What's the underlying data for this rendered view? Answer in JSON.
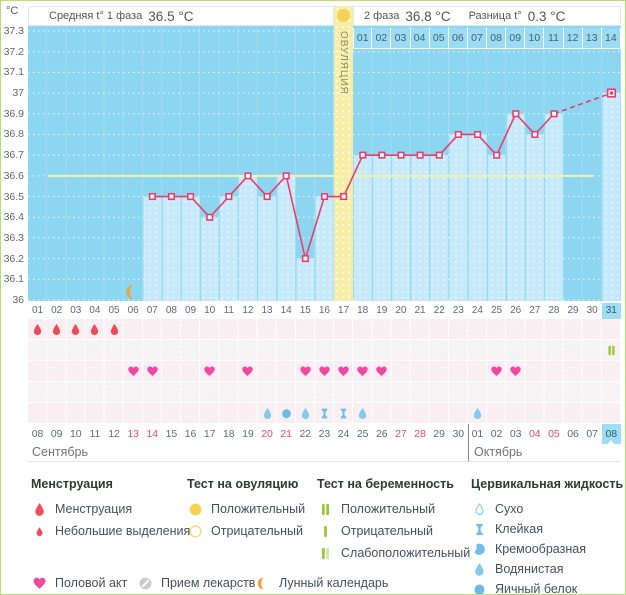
{
  "header": {
    "unit": "°C",
    "phase1_label": "Средняя t° 1 фаза",
    "phase1_value": "36.5 °C",
    "phase2_label": "2 фаза",
    "phase2_value": "36.8 °C",
    "diff_label": "Разница t°",
    "diff_value": "0.3 °C",
    "ovulation_label": "ОВУЛЯЦИЯ"
  },
  "chart_data": {
    "type": "line",
    "ylabel": "°C",
    "ylim": [
      36,
      37.3
    ],
    "yticks": [
      "37.3",
      "37.2",
      "37.1",
      "37",
      "36.9",
      "36.8",
      "36.7",
      "36.6",
      "36.5",
      "36.4",
      "36.3",
      "36.2",
      "36.1",
      "36"
    ],
    "cycle_days": [
      "01",
      "02",
      "03",
      "04",
      "05",
      "06",
      "07",
      "08",
      "09",
      "10",
      "11",
      "12",
      "13",
      "14",
      "15",
      "16",
      "17",
      "18",
      "19",
      "20",
      "21",
      "22",
      "23",
      "24",
      "25",
      "26",
      "27",
      "28",
      "29",
      "30",
      "31"
    ],
    "luteal_days": [
      "01",
      "02",
      "03",
      "04",
      "05",
      "06",
      "07",
      "08",
      "09",
      "10",
      "11",
      "12",
      "13",
      "14"
    ],
    "temperatures": [
      null,
      null,
      null,
      null,
      null,
      null,
      36.5,
      36.5,
      36.5,
      36.4,
      36.5,
      36.6,
      36.5,
      36.6,
      36.2,
      36.5,
      36.5,
      36.7,
      36.7,
      36.7,
      36.7,
      36.7,
      36.8,
      36.8,
      36.7,
      36.9,
      36.8,
      36.9,
      null,
      null,
      37.0
    ],
    "coverline": 36.6,
    "ovulation_day": 17,
    "current_day": 31,
    "moon_day": 6
  },
  "marker_rows": [
    {
      "name": "menstruation-row",
      "markers": [
        {
          "day": 1,
          "icon": "menstruation"
        },
        {
          "day": 2,
          "icon": "menstruation"
        },
        {
          "day": 3,
          "icon": "menstruation"
        },
        {
          "day": 4,
          "icon": "menstruation"
        },
        {
          "day": 5,
          "icon": "menstruation"
        }
      ]
    },
    {
      "name": "test-row",
      "markers": [
        {
          "day": 31,
          "icon": "pregnancy-positive"
        }
      ]
    },
    {
      "name": "intercourse-row",
      "markers": [
        {
          "day": 6,
          "icon": "intercourse"
        },
        {
          "day": 7,
          "icon": "intercourse"
        },
        {
          "day": 10,
          "icon": "intercourse"
        },
        {
          "day": 12,
          "icon": "intercourse"
        },
        {
          "day": 15,
          "icon": "intercourse"
        },
        {
          "day": 16,
          "icon": "intercourse"
        },
        {
          "day": 17,
          "icon": "intercourse"
        },
        {
          "day": 18,
          "icon": "intercourse"
        },
        {
          "day": 19,
          "icon": "intercourse"
        },
        {
          "day": 25,
          "icon": "intercourse"
        },
        {
          "day": 26,
          "icon": "intercourse"
        }
      ]
    },
    {
      "name": "medication-row",
      "markers": []
    },
    {
      "name": "cervical-fluid-row",
      "markers": [
        {
          "day": 13,
          "icon": "watery"
        },
        {
          "day": 14,
          "icon": "eggwhite"
        },
        {
          "day": 15,
          "icon": "watery"
        },
        {
          "day": 16,
          "icon": "sticky"
        },
        {
          "day": 17,
          "icon": "sticky"
        },
        {
          "day": 18,
          "icon": "watery"
        },
        {
          "day": 24,
          "icon": "watery"
        }
      ]
    }
  ],
  "calendar": {
    "dates": [
      "08",
      "09",
      "10",
      "11",
      "12",
      "13",
      "14",
      "15",
      "16",
      "17",
      "18",
      "19",
      "20",
      "21",
      "22",
      "23",
      "24",
      "25",
      "26",
      "27",
      "28",
      "29",
      "30",
      "01",
      "02",
      "03",
      "04",
      "05",
      "06",
      "07",
      "08"
    ],
    "weekend_indices": [
      5,
      6,
      12,
      13,
      19,
      20,
      26,
      27
    ],
    "current_index": 30,
    "months": [
      {
        "label": "Сентябрь",
        "start_index": 0
      },
      {
        "label": "Октябрь",
        "start_index": 23
      }
    ]
  },
  "legend": {
    "groups": [
      {
        "title": "Менструация",
        "items": [
          {
            "icon": "menstruation",
            "label": "Менструация"
          },
          {
            "icon": "spotting",
            "label": "Небольшие выделения"
          }
        ]
      },
      {
        "title": "Тест на овуляцию",
        "items": [
          {
            "icon": "ovulation-positive",
            "label": "Положительный"
          },
          {
            "icon": "ovulation-negative",
            "label": "Отрицательный"
          }
        ]
      },
      {
        "title": "Тест на беременность",
        "items": [
          {
            "icon": "pregnancy-positive",
            "label": "Положительный"
          },
          {
            "icon": "pregnancy-negative",
            "label": "Отрицательный"
          },
          {
            "icon": "pregnancy-weak",
            "label": "Слабоположительный"
          }
        ]
      },
      {
        "title": "Цервикальная жидкость",
        "items": [
          {
            "icon": "dry",
            "label": "Сухо"
          },
          {
            "icon": "sticky",
            "label": "Клейкая"
          },
          {
            "icon": "creamy",
            "label": "Кремообразная"
          },
          {
            "icon": "watery",
            "label": "Водянистая"
          },
          {
            "icon": "eggwhite",
            "label": "Яичный белок"
          }
        ]
      }
    ],
    "footer_items": [
      {
        "icon": "intercourse",
        "label": "Половой акт"
      },
      {
        "icon": "medication",
        "label": "Прием лекарств"
      },
      {
        "icon": "moon",
        "label": "Лунный календарь"
      }
    ]
  },
  "colors": {
    "chart_bg": "#8cd6f1",
    "measured_bar": "#c6eaf9",
    "ovulation_band": "#f6eda7",
    "temp_line": "#ea3d6e",
    "coverline": "#f7f2a3",
    "day_highlight": "#9cdef6",
    "weekend_text": "#e8486e",
    "menstruation_red": "#f24a5b",
    "heart_pink": "#f348a1",
    "fluid_blue": "#85c9ec",
    "test_green": "#9dc53c",
    "ovulation_yellow": "#f6d155",
    "moon_orange": "#f2a23c",
    "medication_gray": "#cbcbcb"
  }
}
